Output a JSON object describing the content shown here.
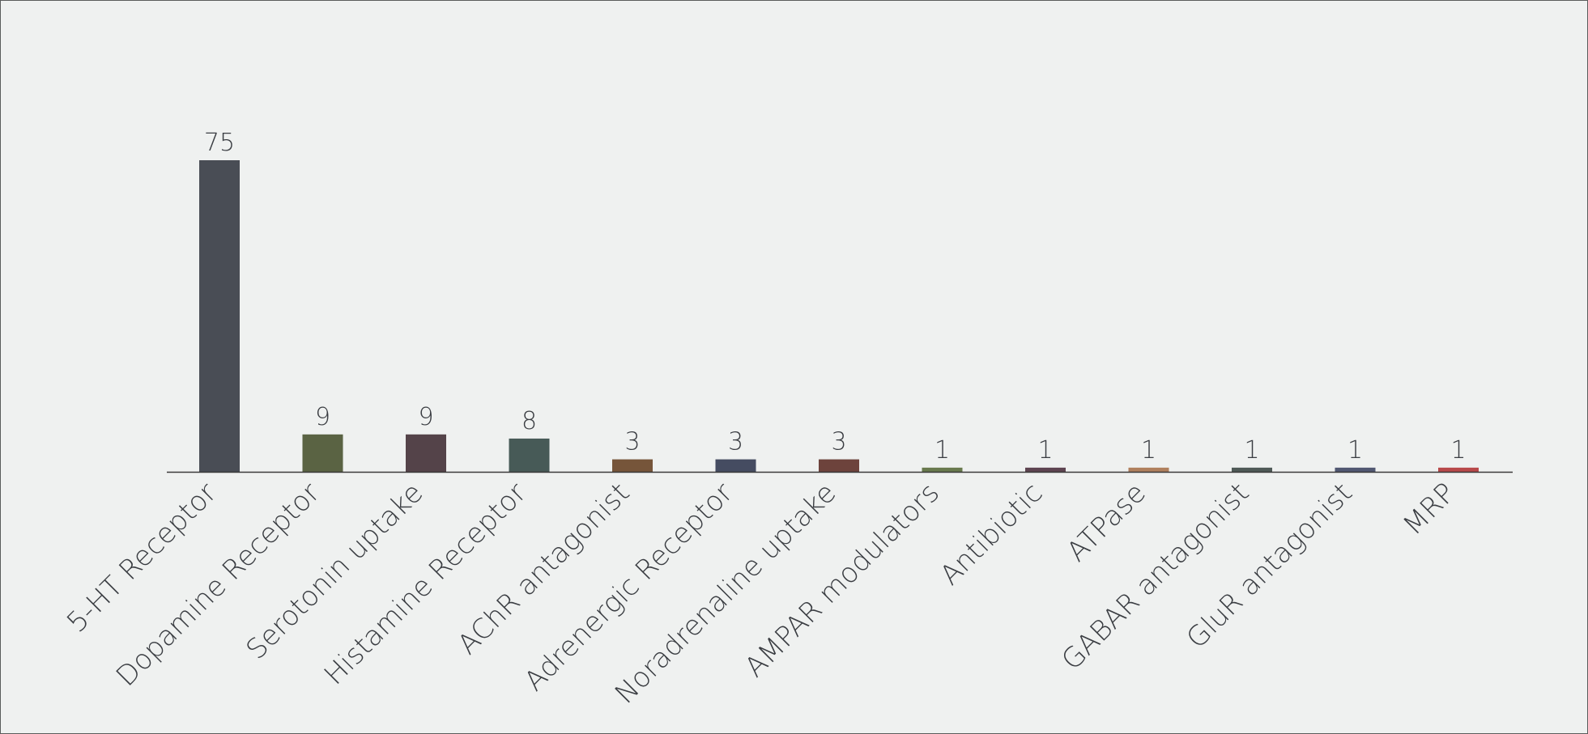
{
  "chart_data": {
    "type": "bar",
    "title": "",
    "xlabel": "",
    "ylabel": "",
    "ylim": [
      0,
      75
    ],
    "grid": false,
    "categories": [
      "5-HT Receptor",
      "Dopamine Receptor",
      "Serotonin uptake",
      "Histamine Receptor",
      "AChR antagonist",
      "Adrenergic Receptor",
      "Noradrenaline uptake",
      "AMPAR modulators",
      "Antibiotic",
      "ATPase",
      "GABAR antagonist",
      "GluR antagonist",
      "MRP"
    ],
    "values": [
      75,
      9,
      9,
      8,
      3,
      3,
      3,
      1,
      1,
      1,
      1,
      1,
      1
    ],
    "colors": [
      "#494d55",
      "#5a6343",
      "#544349",
      "#475a57",
      "#76553a",
      "#454c61",
      "#6d433c",
      "#697a4e",
      "#5e4451",
      "#b0805e",
      "#4f5a57",
      "#515872",
      "#b8494a"
    ],
    "axis_color": "#3a3a3a",
    "label_color": "#3a3d42"
  }
}
